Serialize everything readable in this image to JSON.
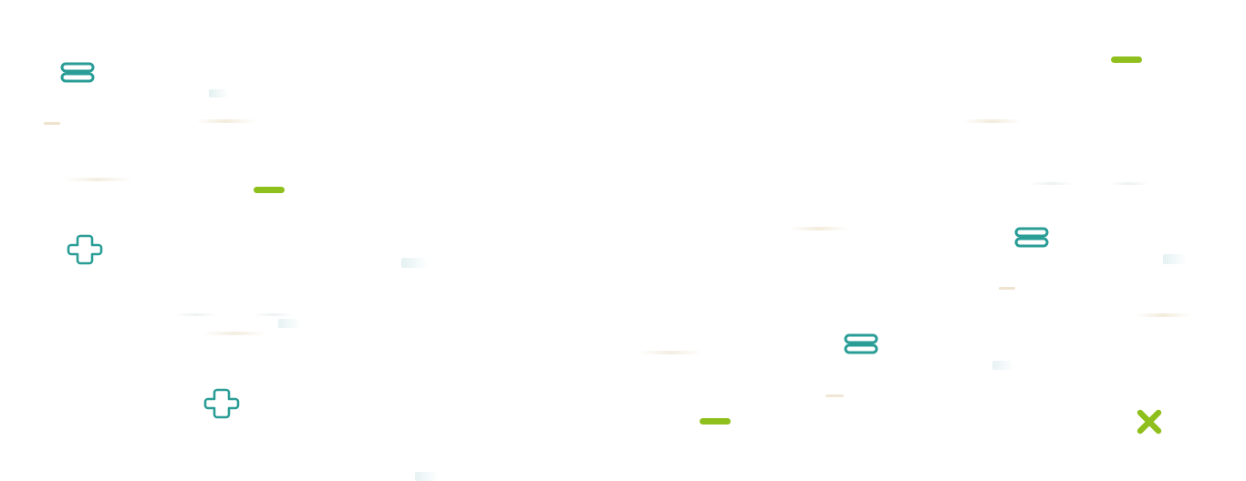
{
  "colors": {
    "teal": "#2a9d96",
    "lime": "#8fbf1c",
    "background": "#ffffff",
    "faint_teal": "#e7f2f3",
    "faint_tan": "#efe8dc"
  },
  "icons": {
    "equals": "equals-icon",
    "plus": "plus-outline-icon",
    "minus": "minus-icon",
    "times": "times-icon"
  }
}
